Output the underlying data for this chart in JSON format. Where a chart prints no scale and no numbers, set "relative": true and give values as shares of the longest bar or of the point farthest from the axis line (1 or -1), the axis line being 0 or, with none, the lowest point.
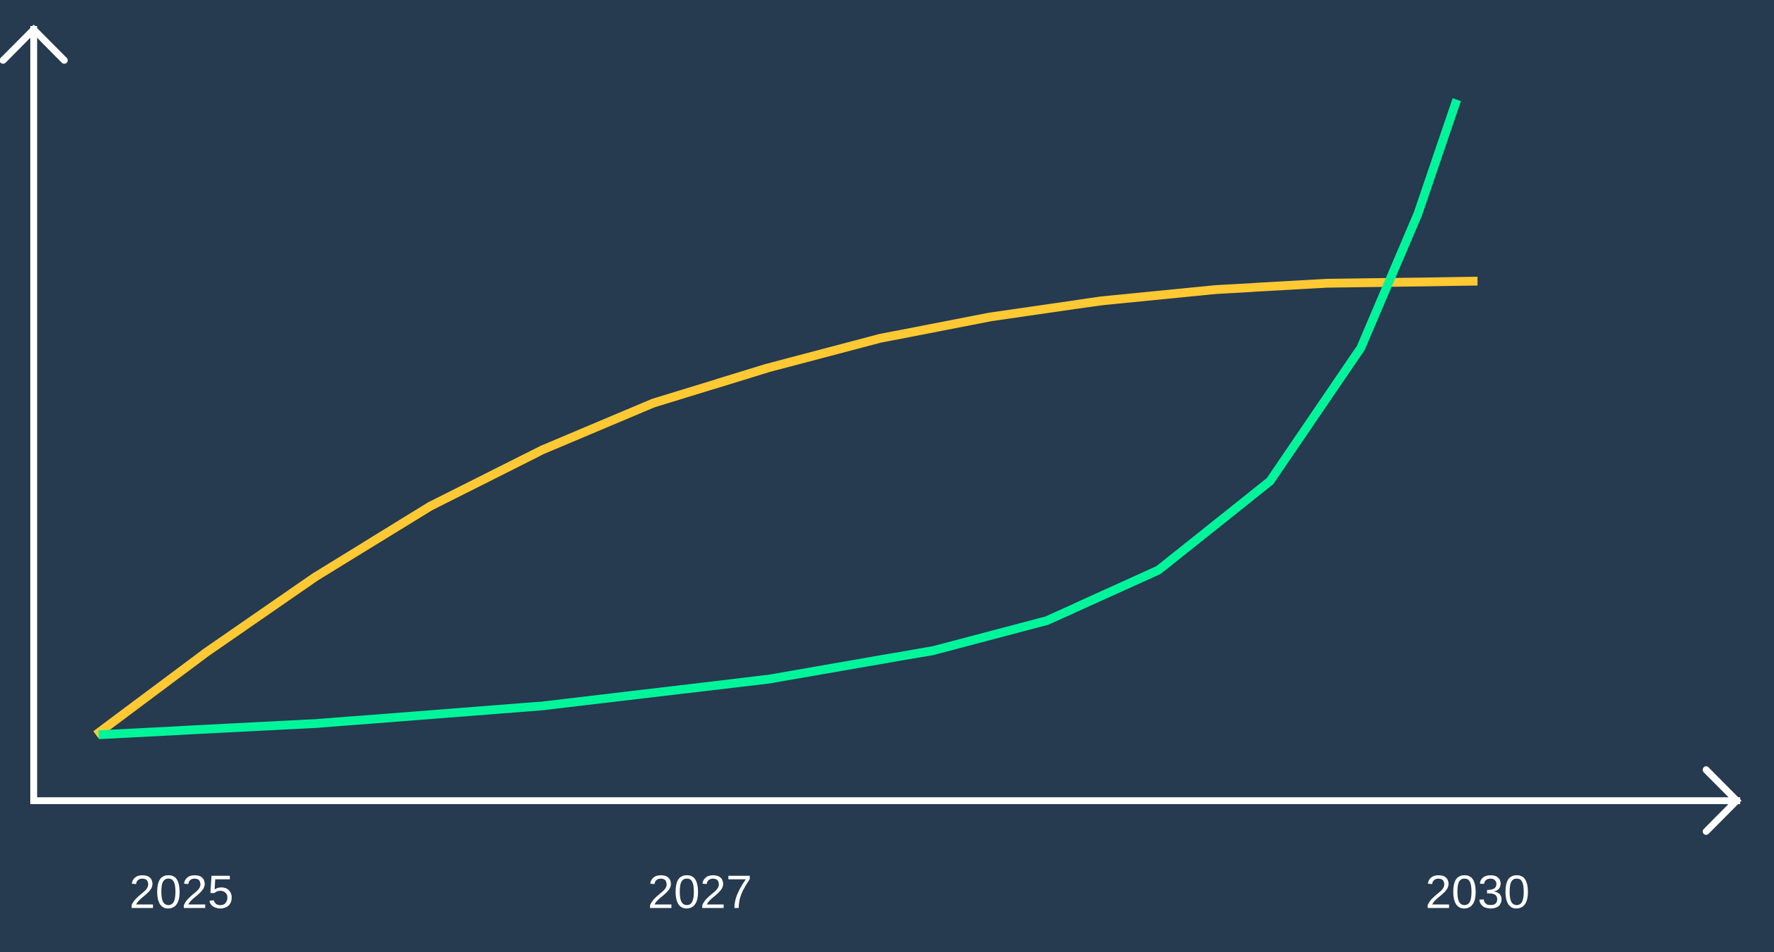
{
  "chart_data": {
    "type": "line",
    "relative": true,
    "xlim": [
      2024.43,
      2031.0
    ],
    "xticks": [
      2025,
      2027,
      2030
    ],
    "tick_labels": "x",
    "grid": false,
    "legend": false,
    "marker": "none",
    "line_style": "solid",
    "series": [
      {
        "color": "#ffc933",
        "x": [
          2024.67,
          2025.09,
          2025.52,
          2025.96,
          2026.39,
          2026.82,
          2027.26,
          2027.69,
          2028.12,
          2028.55,
          2028.99,
          2029.42,
          2030.0
        ],
        "values": [
          0.094,
          0.21,
          0.32,
          0.42,
          0.5,
          0.567,
          0.617,
          0.659,
          0.69,
          0.713,
          0.729,
          0.738,
          0.741
        ]
      },
      {
        "color": "#00f59b",
        "x": [
          2024.68,
          2025.52,
          2026.39,
          2027.26,
          2027.9,
          2028.34,
          2028.77,
          2029.2,
          2029.55,
          2029.77,
          2029.92
        ],
        "values": [
          0.094,
          0.11,
          0.135,
          0.173,
          0.214,
          0.257,
          0.329,
          0.456,
          0.646,
          0.837,
          1.0
        ]
      }
    ]
  }
}
